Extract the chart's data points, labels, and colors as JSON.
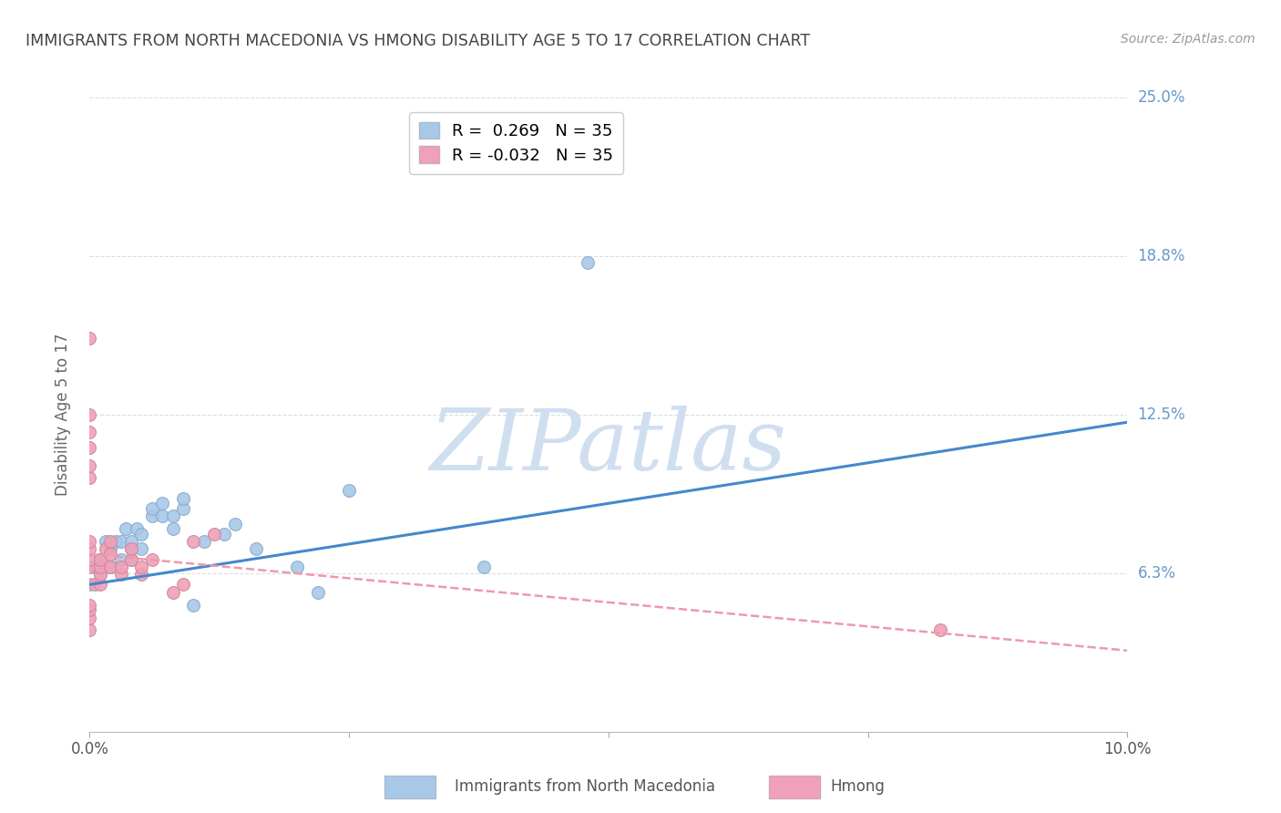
{
  "title": "IMMIGRANTS FROM NORTH MACEDONIA VS HMONG DISABILITY AGE 5 TO 17 CORRELATION CHART",
  "source": "Source: ZipAtlas.com",
  "ylabel": "Disability Age 5 to 17",
  "xlim": [
    0.0,
    0.1
  ],
  "ylim": [
    0.0,
    0.25
  ],
  "ytick_vals": [
    0.0,
    0.0625,
    0.125,
    0.1875,
    0.25
  ],
  "ytick_labels": [
    "",
    "6.3%",
    "12.5%",
    "18.8%",
    "25.0%"
  ],
  "xtick_vals": [
    0.0,
    0.025,
    0.05,
    0.075,
    0.1
  ],
  "xtick_labels": [
    "0.0%",
    "",
    "",
    "",
    "10.0%"
  ],
  "blue_R": "0.269",
  "blue_N": "35",
  "pink_R": "-0.032",
  "pink_N": "35",
  "blue_color": "#A8C8E8",
  "pink_color": "#F0A0B8",
  "blue_line_color": "#4488CC",
  "pink_line_color": "#EE99AA",
  "watermark_text": "ZIPatlas",
  "watermark_color": "#D0DFF0",
  "background_color": "#FFFFFF",
  "grid_color": "#DDDDDD",
  "title_color": "#444444",
  "right_label_color": "#6699CC",
  "blue_line_x0": 0.0,
  "blue_line_y0": 0.058,
  "blue_line_x1": 0.1,
  "blue_line_y1": 0.122,
  "pink_line_x0": 0.0,
  "pink_line_y0": 0.07,
  "pink_line_x1": 0.1,
  "pink_line_y1": 0.032,
  "blue_scatter_x": [
    0.0005,
    0.001,
    0.001,
    0.0015,
    0.002,
    0.002,
    0.0025,
    0.003,
    0.003,
    0.0035,
    0.004,
    0.004,
    0.004,
    0.0045,
    0.005,
    0.005,
    0.006,
    0.006,
    0.007,
    0.007,
    0.008,
    0.008,
    0.009,
    0.009,
    0.01,
    0.011,
    0.013,
    0.014,
    0.016,
    0.02,
    0.022,
    0.025,
    0.038,
    0.048,
    0.0
  ],
  "blue_scatter_y": [
    0.065,
    0.062,
    0.068,
    0.075,
    0.065,
    0.072,
    0.075,
    0.068,
    0.075,
    0.08,
    0.068,
    0.072,
    0.075,
    0.08,
    0.072,
    0.078,
    0.085,
    0.088,
    0.085,
    0.09,
    0.08,
    0.085,
    0.088,
    0.092,
    0.05,
    0.075,
    0.078,
    0.082,
    0.072,
    0.065,
    0.055,
    0.095,
    0.065,
    0.185,
    0.058
  ],
  "pink_scatter_x": [
    0.0,
    0.0,
    0.0,
    0.0,
    0.0,
    0.0005,
    0.001,
    0.001,
    0.001,
    0.001,
    0.0015,
    0.002,
    0.002,
    0.002,
    0.003,
    0.003,
    0.004,
    0.004,
    0.005,
    0.005,
    0.006,
    0.008,
    0.009,
    0.01,
    0.012,
    0.0,
    0.0,
    0.0,
    0.0,
    0.0,
    0.0,
    0.0,
    0.0,
    0.082,
    0.0
  ],
  "pink_scatter_y": [
    0.065,
    0.068,
    0.072,
    0.075,
    0.155,
    0.058,
    0.058,
    0.062,
    0.065,
    0.068,
    0.072,
    0.065,
    0.07,
    0.075,
    0.062,
    0.065,
    0.068,
    0.072,
    0.062,
    0.065,
    0.068,
    0.055,
    0.058,
    0.075,
    0.078,
    0.1,
    0.105,
    0.112,
    0.118,
    0.125,
    0.04,
    0.045,
    0.048,
    0.04,
    0.05
  ]
}
